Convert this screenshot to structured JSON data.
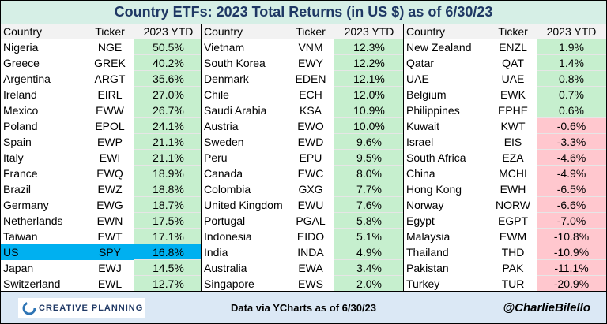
{
  "header": {
    "title": "Country ETFs: 2023 Total Returns (in US $) as of 6/30/23"
  },
  "table": {
    "positive_color": "#c6efce",
    "negative_color": "#ffc7ce",
    "highlight_color": "#00b0f0",
    "groups": [
      {
        "columns": [
          "Country",
          "Ticker",
          "2023 YTD"
        ],
        "highlight_row": 13,
        "rows": [
          [
            "Nigeria",
            "NGE",
            "50.5%"
          ],
          [
            "Greece",
            "GREK",
            "40.2%"
          ],
          [
            "Argentina",
            "ARGT",
            "35.6%"
          ],
          [
            "Ireland",
            "EIRL",
            "27.0%"
          ],
          [
            "Mexico",
            "EWW",
            "26.7%"
          ],
          [
            "Poland",
            "EPOL",
            "24.1%"
          ],
          [
            "Spain",
            "EWP",
            "21.1%"
          ],
          [
            "Italy",
            "EWI",
            "21.1%"
          ],
          [
            "France",
            "EWQ",
            "18.9%"
          ],
          [
            "Brazil",
            "EWZ",
            "18.8%"
          ],
          [
            "Germany",
            "EWG",
            "18.7%"
          ],
          [
            "Netherlands",
            "EWN",
            "17.5%"
          ],
          [
            "Taiwan",
            "EWT",
            "17.1%"
          ],
          [
            "US",
            "SPY",
            "16.8%"
          ],
          [
            "Japan",
            "EWJ",
            "14.5%"
          ],
          [
            "Switzerland",
            "EWL",
            "12.7%"
          ]
        ]
      },
      {
        "columns": [
          "Country",
          "Ticker",
          "2023 YTD"
        ],
        "rows": [
          [
            "Vietnam",
            "VNM",
            "12.3%"
          ],
          [
            "South Korea",
            "EWY",
            "12.2%"
          ],
          [
            "Denmark",
            "EDEN",
            "12.1%"
          ],
          [
            "Chile",
            "ECH",
            "12.0%"
          ],
          [
            "Saudi Arabia",
            "KSA",
            "10.9%"
          ],
          [
            "Austria",
            "EWO",
            "10.0%"
          ],
          [
            "Sweden",
            "EWD",
            "9.6%"
          ],
          [
            "Peru",
            "EPU",
            "9.5%"
          ],
          [
            "Canada",
            "EWC",
            "8.0%"
          ],
          [
            "Colombia",
            "GXG",
            "7.7%"
          ],
          [
            "United Kingdom",
            "EWU",
            "7.6%"
          ],
          [
            "Portugal",
            "PGAL",
            "5.8%"
          ],
          [
            "Indonesia",
            "EIDO",
            "5.1%"
          ],
          [
            "India",
            "INDA",
            "4.9%"
          ],
          [
            "Australia",
            "EWA",
            "3.4%"
          ],
          [
            "Singapore",
            "EWS",
            "2.0%"
          ]
        ]
      },
      {
        "columns": [
          "Country",
          "Ticker",
          "2023 YTD"
        ],
        "rows": [
          [
            "New Zealand",
            "ENZL",
            "1.9%"
          ],
          [
            "Qatar",
            "QAT",
            "1.4%"
          ],
          [
            "UAE",
            "UAE",
            "0.8%"
          ],
          [
            "Belgium",
            "EWK",
            "0.7%"
          ],
          [
            "Philippines",
            "EPHE",
            "0.6%"
          ],
          [
            "Kuwait",
            "KWT",
            "-0.6%"
          ],
          [
            "Israel",
            "EIS",
            "-3.3%"
          ],
          [
            "South Africa",
            "EZA",
            "-4.6%"
          ],
          [
            "China",
            "MCHI",
            "-4.9%"
          ],
          [
            "Hong Kong",
            "EWH",
            "-6.5%"
          ],
          [
            "Norway",
            "NORW",
            "-6.6%"
          ],
          [
            "Egypt",
            "EGPT",
            "-7.0%"
          ],
          [
            "Malaysia",
            "EWM",
            "-10.8%"
          ],
          [
            "Thailand",
            "THD",
            "-10.9%"
          ],
          [
            "Pakistan",
            "PAK",
            "-11.1%"
          ],
          [
            "Turkey",
            "TUR",
            "-20.9%"
          ]
        ]
      }
    ]
  },
  "footer": {
    "logo": "CREATIVE PLANNING",
    "source": "Data via YCharts as of 6/30/23",
    "handle": "@CharlieBilello"
  }
}
